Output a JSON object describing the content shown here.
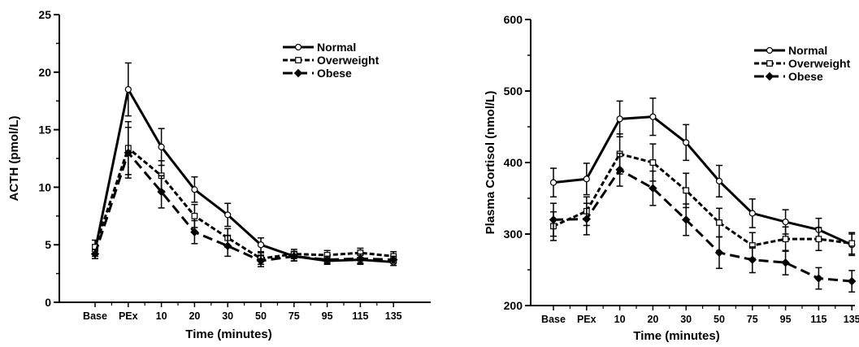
{
  "chart_data": [
    {
      "type": "line",
      "title": "",
      "xlabel": "Time  (minutes)",
      "ylabel": "ACTH  (pmol/L)",
      "categories": [
        "Base",
        "PEx",
        "10",
        "20",
        "30",
        "50",
        "75",
        "95",
        "115",
        "135"
      ],
      "ylim": [
        0,
        25
      ],
      "yticks": [
        "0",
        "5",
        "10",
        "15",
        "20",
        "25"
      ],
      "legend_position": "top-right",
      "series": [
        {
          "name": "Normal",
          "style": "solid",
          "marker": "circle",
          "values": [
            4.5,
            18.5,
            13.5,
            9.8,
            7.6,
            5.0,
            4.0,
            3.6,
            3.7,
            3.5
          ],
          "errors": [
            0.5,
            2.3,
            1.6,
            1.1,
            1.0,
            0.6,
            0.4,
            0.3,
            0.4,
            0.3
          ]
        },
        {
          "name": "Overweight",
          "style": "short-dash",
          "marker": "square",
          "values": [
            4.8,
            13.4,
            11.0,
            7.5,
            5.6,
            3.8,
            4.2,
            4.1,
            4.3,
            4.0
          ],
          "errors": [
            0.6,
            2.3,
            1.3,
            1.0,
            0.8,
            0.5,
            0.4,
            0.4,
            0.4,
            0.4
          ]
        },
        {
          "name": "Obese",
          "style": "long-dash",
          "marker": "diamond",
          "values": [
            4.2,
            13.0,
            9.6,
            6.1,
            4.9,
            3.6,
            4.0,
            3.7,
            3.8,
            3.7
          ],
          "errors": [
            0.4,
            2.2,
            1.4,
            1.0,
            0.9,
            0.5,
            0.4,
            0.3,
            0.4,
            0.3
          ]
        }
      ]
    },
    {
      "type": "line",
      "title": "",
      "xlabel": "Time  (minutes)",
      "ylabel": "Plasma  Cortisol  (nmol/L)",
      "categories": [
        "Base",
        "PEx",
        "10",
        "20",
        "30",
        "50",
        "75",
        "95",
        "115",
        "135"
      ],
      "ylim": [
        200,
        600
      ],
      "yticks": [
        "200",
        "300",
        "400",
        "500",
        "600"
      ],
      "legend_position": "top-right",
      "series": [
        {
          "name": "Normal",
          "style": "solid",
          "marker": "circle",
          "values": [
            372,
            377,
            461,
            464,
            428,
            374,
            329,
            317,
            306,
            285
          ],
          "errors": [
            20,
            22,
            25,
            26,
            25,
            22,
            20,
            17,
            16,
            15
          ]
        },
        {
          "name": "Overweight",
          "style": "short-dash",
          "marker": "square",
          "values": [
            311,
            332,
            412,
            400,
            361,
            316,
            284,
            293,
            293,
            287
          ],
          "errors": [
            20,
            20,
            28,
            26,
            24,
            20,
            18,
            17,
            16,
            15
          ]
        },
        {
          "name": "Obese",
          "style": "long-dash",
          "marker": "diamond",
          "values": [
            320,
            321,
            390,
            364,
            320,
            274,
            264,
            260,
            238,
            234
          ],
          "errors": [
            23,
            22,
            23,
            24,
            22,
            22,
            18,
            17,
            15,
            15
          ]
        }
      ]
    }
  ]
}
